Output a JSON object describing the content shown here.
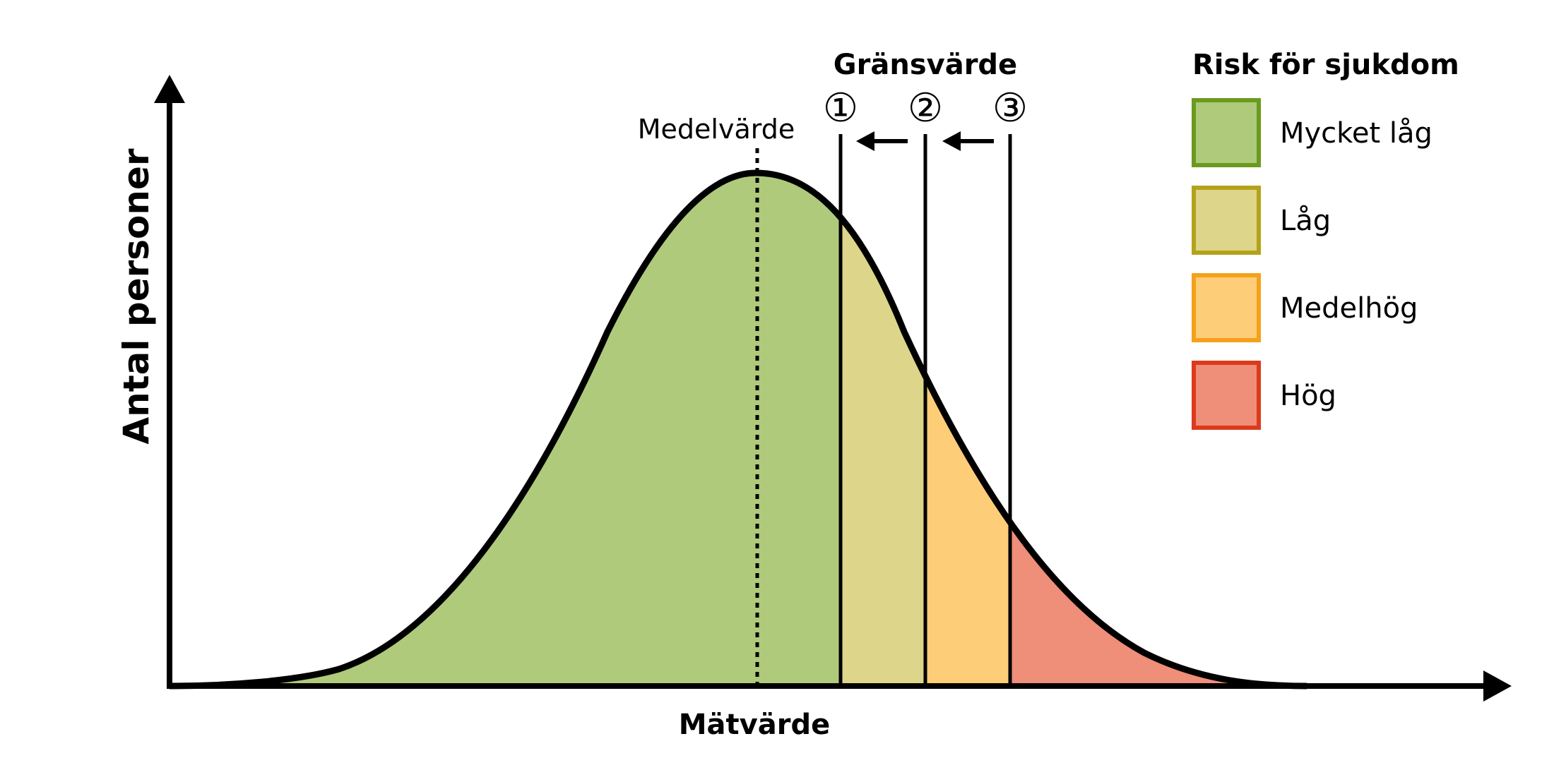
{
  "labels": {
    "y_axis": "Antal personer",
    "x_axis": "Mätvärde",
    "mean": "Medelvärde",
    "threshold_title": "Gränsvärde"
  },
  "thresholds": [
    {
      "marker": "①"
    },
    {
      "marker": "②"
    },
    {
      "marker": "③"
    }
  ],
  "legend": {
    "title": "Risk för sjukdom",
    "items": [
      {
        "label": "Mycket låg",
        "fill": "#afca7b",
        "border": "#6a9a1e"
      },
      {
        "label": "Låg",
        "fill": "#ddd58a",
        "border": "#b4a31a"
      },
      {
        "label": "Medelhög",
        "fill": "#fdcd78",
        "border": "#f4a11b"
      },
      {
        "label": "Hög",
        "fill": "#ef8e79",
        "border": "#dc3b1b"
      }
    ]
  },
  "colors": {
    "axis": "#000000",
    "curve": "#000000"
  }
}
